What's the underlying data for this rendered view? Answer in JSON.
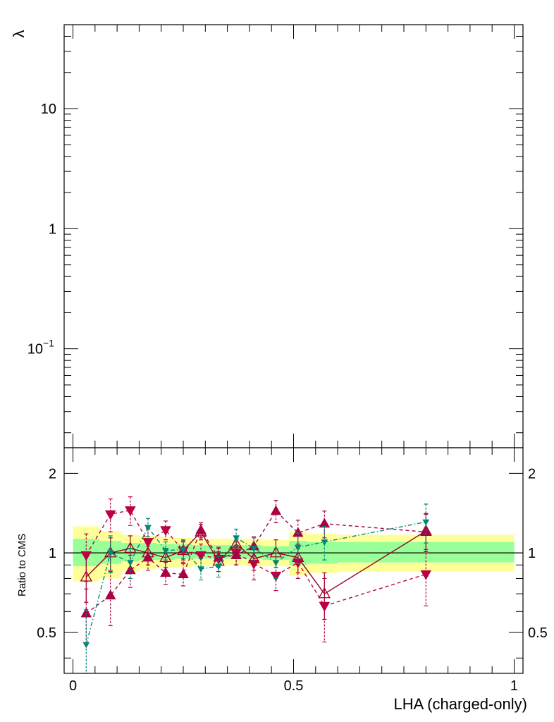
{
  "chart_data": [
    {
      "type": "line",
      "panel": "main",
      "ylabel": "λ",
      "yscale": "log",
      "ylim": [
        0.015,
        50
      ],
      "xlim": [
        -0.02,
        1.02
      ],
      "yticks": [
        {
          "value": 0.1,
          "base": "10",
          "exp": "−1"
        },
        {
          "value": 1,
          "label": "1"
        },
        {
          "value": 10,
          "label": "10"
        }
      ],
      "series": []
    },
    {
      "type": "line",
      "panel": "ratio",
      "xlabel": "LHA (charged-only)",
      "ylabel": "Ratio to CMS",
      "yscale": "log",
      "ylim": [
        0.35,
        2.5
      ],
      "xlim": [
        -0.02,
        1.02
      ],
      "xticks": [
        {
          "value": 0,
          "label": "0"
        },
        {
          "value": 0.5,
          "label": "0.5"
        },
        {
          "value": 1,
          "label": "1"
        }
      ],
      "yticks": [
        {
          "value": 0.5,
          "label": "0.5"
        },
        {
          "value": 1,
          "label": "1"
        },
        {
          "value": 2,
          "label": "2"
        }
      ],
      "reference_line": 1,
      "bands": {
        "bins": [
          0,
          0.06,
          0.11,
          0.15,
          0.19,
          0.23,
          0.27,
          0.31,
          0.35,
          0.39,
          0.43,
          0.49,
          0.53,
          0.6,
          1.0
        ],
        "outer_lo": [
          0.78,
          0.8,
          0.85,
          0.87,
          0.88,
          0.88,
          0.89,
          0.9,
          0.9,
          0.89,
          0.89,
          0.82,
          0.84,
          0.85
        ],
        "outer_hi": [
          1.26,
          1.21,
          1.17,
          1.16,
          1.15,
          1.14,
          1.13,
          1.13,
          1.13,
          1.13,
          1.12,
          1.2,
          1.18,
          1.17
        ],
        "inner_lo": [
          0.89,
          0.91,
          0.93,
          0.94,
          0.94,
          0.95,
          0.95,
          0.95,
          0.95,
          0.95,
          0.94,
          0.9,
          0.91,
          0.92
        ],
        "inner_hi": [
          1.13,
          1.11,
          1.09,
          1.09,
          1.08,
          1.08,
          1.07,
          1.07,
          1.07,
          1.07,
          1.06,
          1.11,
          1.1,
          1.1
        ],
        "outer_color": "#ffff99",
        "inner_color": "#99ff99"
      },
      "series": [
        {
          "marker": "open-triangle-up",
          "color": "#990022",
          "linestyle": "solid",
          "x": [
            0.03,
            0.085,
            0.13,
            0.17,
            0.21,
            0.25,
            0.29,
            0.33,
            0.37,
            0.41,
            0.46,
            0.51,
            0.57,
            0.8
          ],
          "y": [
            0.81,
            1.0,
            1.04,
            1.0,
            0.96,
            1.02,
            1.2,
            0.93,
            1.08,
            0.95,
            1.0,
            0.96,
            0.7,
            1.21
          ],
          "err": [
            0.16,
            0.14,
            0.12,
            0.1,
            0.08,
            0.08,
            0.08,
            0.08,
            0.08,
            0.09,
            0.12,
            0.12,
            0.14,
            0.2
          ]
        },
        {
          "marker": "filled-triangle-down",
          "color": "#bb0044",
          "linestyle": "dashed",
          "x": [
            0.03,
            0.085,
            0.13,
            0.17,
            0.21,
            0.25,
            0.29,
            0.33,
            0.37,
            0.41,
            0.46,
            0.51,
            0.57,
            0.8
          ],
          "y": [
            0.98,
            1.4,
            1.45,
            1.1,
            1.22,
            1.02,
            0.98,
            0.95,
            1.0,
            0.91,
            0.82,
            0.92,
            0.63,
            0.83
          ],
          "err": [
            0.2,
            0.2,
            0.18,
            0.14,
            0.1,
            0.1,
            0.1,
            0.1,
            0.1,
            0.12,
            0.1,
            0.12,
            0.17,
            0.2
          ]
        },
        {
          "marker": "filled-triangle-up",
          "color": "#aa0044",
          "linestyle": "dashed",
          "x": [
            0.03,
            0.085,
            0.13,
            0.17,
            0.21,
            0.25,
            0.29,
            0.33,
            0.37,
            0.41,
            0.46,
            0.51,
            0.57,
            0.8
          ],
          "y": [
            0.59,
            0.69,
            0.86,
            0.96,
            0.84,
            0.83,
            1.22,
            0.96,
            0.98,
            1.06,
            1.44,
            1.19,
            1.29,
            1.2
          ],
          "err": [
            0.14,
            0.16,
            0.12,
            0.1,
            0.08,
            0.08,
            0.08,
            0.08,
            0.08,
            0.09,
            0.14,
            0.14,
            0.15,
            0.2
          ]
        },
        {
          "marker": "filled-triangle-down-small",
          "color": "#008877",
          "linestyle": "dashdot",
          "x": [
            0.03,
            0.085,
            0.13,
            0.17,
            0.21,
            0.25,
            0.29,
            0.33,
            0.37,
            0.41,
            0.46,
            0.51,
            0.57,
            0.8
          ],
          "y": [
            0.45,
            1.0,
            0.92,
            1.25,
            1.02,
            1.03,
            0.87,
            0.89,
            1.14,
            1.04,
            0.92,
            1.05,
            1.1,
            1.31
          ],
          "err": [
            0.16,
            0.16,
            0.12,
            0.1,
            0.08,
            0.08,
            0.08,
            0.08,
            0.09,
            0.1,
            0.12,
            0.14,
            0.16,
            0.22
          ]
        }
      ]
    }
  ]
}
